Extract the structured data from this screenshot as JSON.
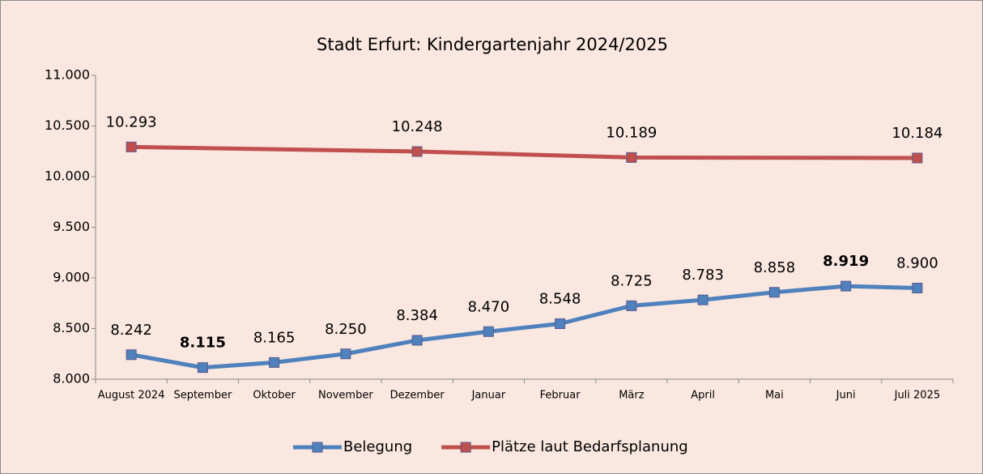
{
  "chart_data": {
    "type": "line",
    "title": "Stadt Erfurt: Kindergartenjahr 2024/2025",
    "categories": [
      "August 2024",
      "September",
      "Oktober",
      "November",
      "Dezember",
      "Januar",
      "Februar",
      "März",
      "April",
      "Mai",
      "Juni",
      "Juli 2025"
    ],
    "series": [
      {
        "name": "Belegung",
        "color": "#4f81bd",
        "values": [
          8242,
          8115,
          8165,
          8250,
          8384,
          8470,
          8548,
          8725,
          8783,
          8858,
          8919,
          8900
        ],
        "value_labels": [
          "8.242",
          "8.115",
          "8.165",
          "8.250",
          "8.384",
          "8.470",
          "8.548",
          "8.725",
          "8.783",
          "8.858",
          "8.919",
          "8.900"
        ],
        "value_label_colors": [
          "#000000",
          "#1aa34a",
          "#000000",
          "#000000",
          "#000000",
          "#000000",
          "#000000",
          "#000000",
          "#000000",
          "#000000",
          "#e00000",
          "#000000"
        ]
      },
      {
        "name": "Plätze laut Bedarfsplanung",
        "color": "#c0504d",
        "x": [
          "August 2024",
          "Dezember",
          "März",
          "Juli 2025"
        ],
        "values": [
          10293,
          10248,
          10189,
          10184
        ],
        "value_labels": [
          "10.293",
          "10.248",
          "10.189",
          "10.184"
        ]
      }
    ],
    "ylim": [
      8000,
      11000
    ],
    "yticks": [
      {
        "value": 8000,
        "label": "8.000"
      },
      {
        "value": 8500,
        "label": "8.500"
      },
      {
        "value": 9000,
        "label": "9.000"
      },
      {
        "value": 9500,
        "label": "9.500"
      },
      {
        "value": 10000,
        "label": "10.000"
      },
      {
        "value": 10500,
        "label": "10.500"
      },
      {
        "value": 11000,
        "label": "11.000"
      }
    ],
    "grid": false,
    "legend": "bottom"
  }
}
